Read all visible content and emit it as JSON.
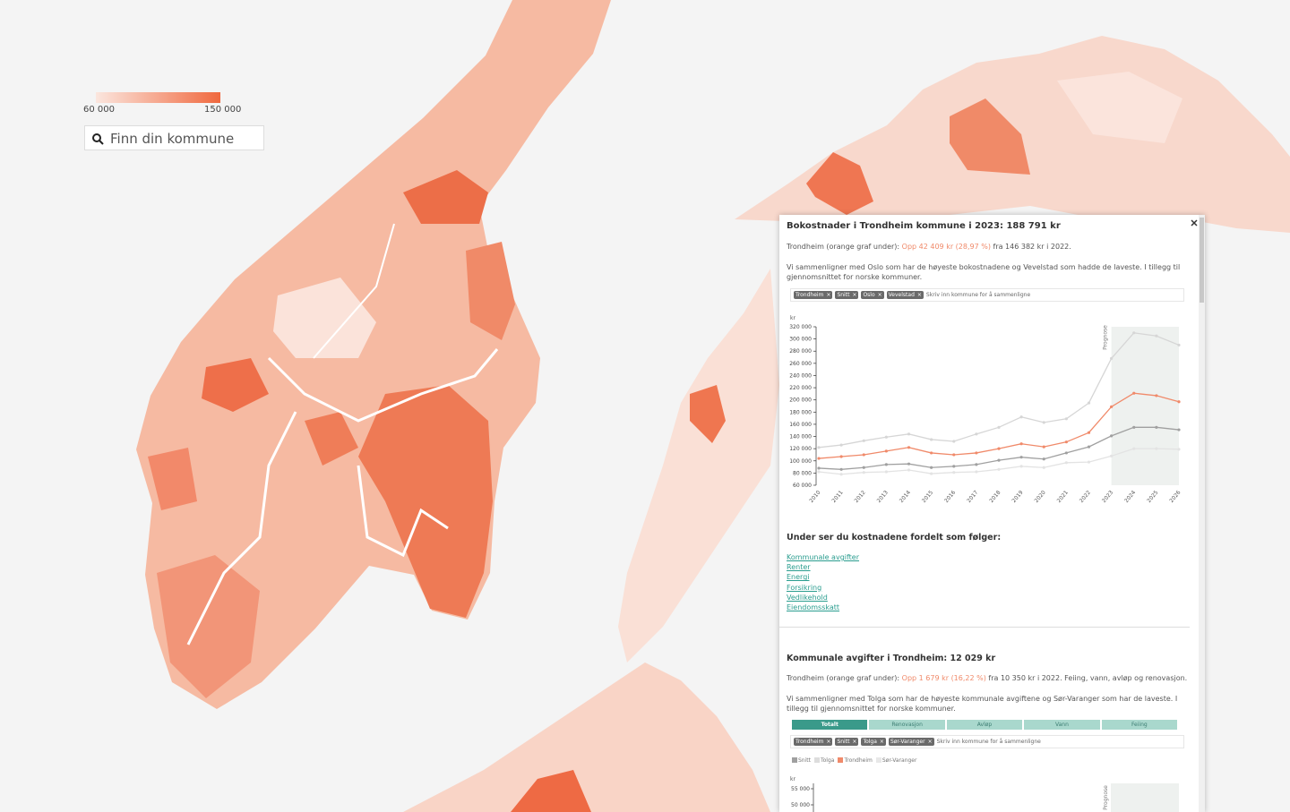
{
  "legend": {
    "min_label": "60 000",
    "max_label": "150 000"
  },
  "search": {
    "placeholder": "Finn din kommune"
  },
  "panel": {
    "title": "Bokostnader i Trondheim kommune i 2023: 188 791 kr",
    "intro": [
      "Trondheim (orange graf under): ",
      "Opp 42 409 kr (28,97 %)",
      " fra 146 382 kr i 2022."
    ],
    "compare_text": "Vi sammenligner med Oslo som har de høyeste bokostnadene og Vevelstad som hadde de laveste. I tillegg til gjennomsnittet for norske kommuner.",
    "input_placeholder": "Skriv inn kommune for å sammenligne",
    "breakdown_heading": "Under ser du kostnadene fordelt som følger:",
    "links": [
      "Kommunale avgifter",
      "Renter",
      "Energi",
      "Forsikring",
      "Vedlikehold",
      "Eiendomsskatt"
    ],
    "section2": {
      "title": "Kommunale avgifter i Trondheim: 12 029 kr",
      "intro": [
        "Trondheim (orange graf under): ",
        "Opp 1 679 kr (16,22 %)",
        " fra 10 350 kr i 2022. Feiing, vann, avløp og renovasjon."
      ],
      "compare_text": "Vi sammenligner med Tolga som har de høyeste kommunale avgiftene og Sør-Varanger som har de laveste. I tillegg til gjennomsnittet for norske kommuner.",
      "tabs": [
        "Totalt",
        "Renovasjon",
        "Avløp",
        "Vann",
        "Feiing"
      ],
      "tags": [
        "Trondheim",
        "Snitt",
        "Tolga",
        "Sør-Varanger"
      ],
      "input_placeholder": "Skriv inn kommune for å sammenligne",
      "legend": [
        {
          "name": "Snitt",
          "color": "#a0a0a0"
        },
        {
          "name": "Tolga",
          "color": "#dddddd"
        },
        {
          "name": "Trondheim",
          "color": "#f08a6a"
        },
        {
          "name": "Sør-Varanger",
          "color": "#e8e8e8"
        }
      ],
      "chart": {
        "unit": "kr",
        "forecast_label": "Prognose",
        "yticks": [
          {
            "value": 55000,
            "label": "55 000"
          },
          {
            "value": 50000,
            "label": "50 000"
          }
        ]
      }
    }
  },
  "chart_data": {
    "type": "line",
    "y_unit": "kr",
    "categories": [
      "2010",
      "2011",
      "2012",
      "2013",
      "2014",
      "2015",
      "2016",
      "2017",
      "2018",
      "2019",
      "2020",
      "2021",
      "2022",
      "2023",
      "2024",
      "2025",
      "2026"
    ],
    "ylim": [
      60000,
      320000
    ],
    "yticks": [
      {
        "value": 60000,
        "label": "60 000"
      },
      {
        "value": 80000,
        "label": "80 000"
      },
      {
        "value": 100000,
        "label": "100 000"
      },
      {
        "value": 120000,
        "label": "120 000"
      },
      {
        "value": 140000,
        "label": "140 000"
      },
      {
        "value": 160000,
        "label": "160 000"
      },
      {
        "value": 180000,
        "label": "180 000"
      },
      {
        "value": 200000,
        "label": "200 000"
      },
      {
        "value": 220000,
        "label": "220 000"
      },
      {
        "value": 240000,
        "label": "240 000"
      },
      {
        "value": 260000,
        "label": "260 000"
      },
      {
        "value": 280000,
        "label": "280 000"
      },
      {
        "value": 300000,
        "label": "300 000"
      },
      {
        "value": 320000,
        "label": "320 000"
      }
    ],
    "annotations": [
      {
        "text": "Prognose",
        "x": "2023"
      }
    ],
    "series": [
      {
        "name": "Trondheim",
        "color": "#f08a6a",
        "values": [
          104000,
          107000,
          110000,
          116000,
          122000,
          113000,
          110000,
          113000,
          120000,
          128000,
          123000,
          131000,
          146382,
          188791,
          211000,
          207000,
          197000
        ]
      },
      {
        "name": "Snitt",
        "color": "#a0a0a0",
        "values": [
          88000,
          86000,
          89000,
          94000,
          95000,
          89000,
          91000,
          94000,
          101000,
          106000,
          103000,
          113000,
          123000,
          141000,
          155000,
          155000,
          151000
        ]
      },
      {
        "name": "Oslo",
        "color": "#d6d6d6",
        "values": [
          122000,
          126000,
          133000,
          139000,
          144000,
          135000,
          132000,
          144000,
          155000,
          172000,
          163000,
          169000,
          195000,
          268000,
          310000,
          305000,
          290000
        ]
      },
      {
        "name": "Vevelstad",
        "color": "#e3e3e3",
        "values": [
          82000,
          78000,
          81000,
          82000,
          85000,
          79000,
          81000,
          82000,
          86000,
          91000,
          89000,
          97000,
          98000,
          108000,
          120000,
          120000,
          119000
        ]
      }
    ]
  }
}
